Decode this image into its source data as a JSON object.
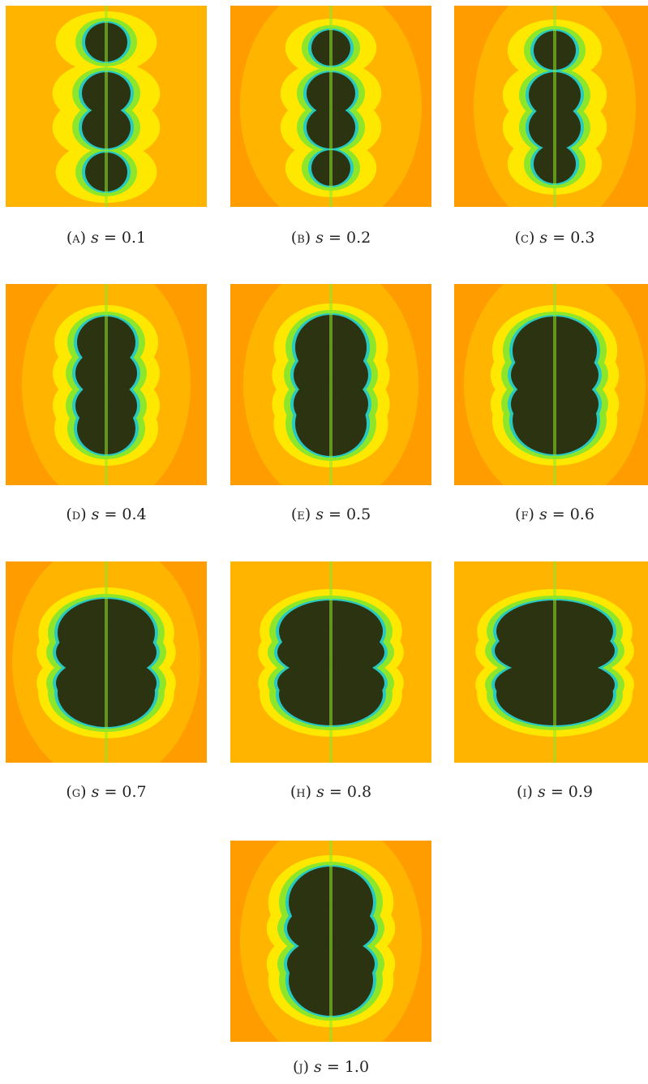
{
  "figure": {
    "panels": [
      {
        "id": "a",
        "label": "(a)",
        "var": "s",
        "op": " = ",
        "value": "0.1"
      },
      {
        "id": "b",
        "label": "(b)",
        "var": "s",
        "op": " = ",
        "value": "0.2"
      },
      {
        "id": "c",
        "label": "(c)",
        "var": "s",
        "op": " = ",
        "value": "0.3"
      },
      {
        "id": "d",
        "label": "(d)",
        "var": "s",
        "op": " = ",
        "value": "0.4"
      },
      {
        "id": "e",
        "label": "(e)",
        "var": "s",
        "op": " = ",
        "value": "0.5"
      },
      {
        "id": "f",
        "label": "(f)",
        "var": "s",
        "op": " = ",
        "value": "0.6"
      },
      {
        "id": "g",
        "label": "(g)",
        "var": "s",
        "op": " = ",
        "value": "0.7"
      },
      {
        "id": "h",
        "label": "(h)",
        "var": "s",
        "op": " = ",
        "value": "0.8"
      },
      {
        "id": "i",
        "label": "(i)",
        "var": "s",
        "op": " = ",
        "value": "0.9"
      },
      {
        "id": "j",
        "label": "(j)",
        "var": "s",
        "op": " = ",
        "value": "1.0"
      }
    ],
    "colors": {
      "outer": "#ff9c00",
      "band": "#ffb400",
      "yellow": "#ffe800",
      "green": "#8ee62a",
      "cyan": "#27c9c0",
      "body": "#2b3311"
    }
  }
}
